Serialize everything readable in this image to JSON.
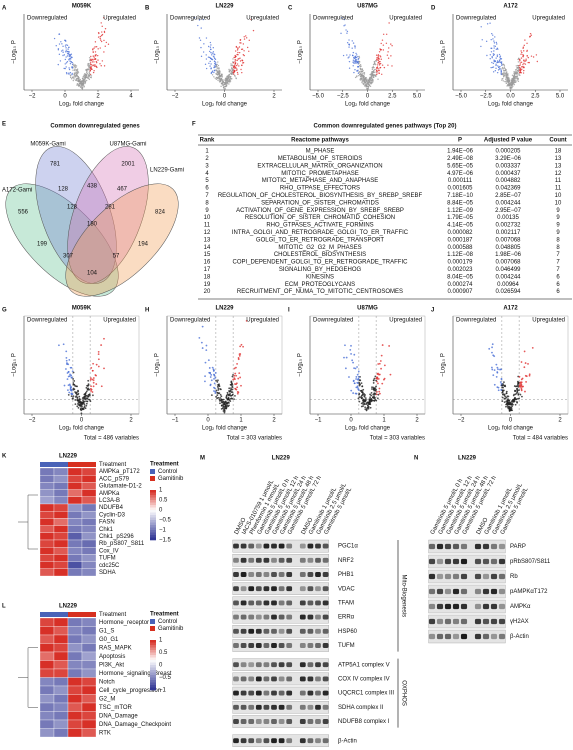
{
  "volcano_labels": {
    "down_label": "Downregulated",
    "up_label": "Upregulated",
    "xlabel": "Log₂ fold change",
    "ylabel": "−Log₁₀ P"
  },
  "volcanoes_top": [
    {
      "letter": "A",
      "title": "M059K",
      "xticks": [
        "−2",
        "0",
        "2",
        "4"
      ]
    },
    {
      "letter": "B",
      "title": "LN229",
      "xticks": [
        "−2",
        "0",
        "2"
      ]
    },
    {
      "letter": "C",
      "title": "U87MG",
      "xticks": [
        "−5.0",
        "−2.5",
        "0",
        "2.5",
        "5.0"
      ]
    },
    {
      "letter": "D",
      "title": "A172",
      "xticks": [
        "−5.0",
        "−2.5",
        "0.0",
        "2.5",
        "5.0"
      ]
    }
  ],
  "volcanoes_bottom": [
    {
      "letter": "G",
      "title": "M059K",
      "xticks": [
        "−2",
        "0",
        "2"
      ],
      "total": "Total = 486 variables"
    },
    {
      "letter": "H",
      "title": "LN229",
      "xticks": [
        "−1",
        "0",
        "1",
        "2"
      ],
      "total": "Total = 303 variables"
    },
    {
      "letter": "I",
      "title": "U87MG",
      "xticks": [
        "−1",
        "0",
        "1",
        "2"
      ],
      "total": "Total = 303 variables"
    },
    {
      "letter": "J",
      "title": "A172",
      "xticks": [
        "−2",
        "0",
        "2"
      ],
      "total": "Total = 484 variables"
    }
  ],
  "venn": {
    "letter": "E",
    "title": "Common downregulated genes",
    "sets": [
      "A172-Gami",
      "M059K-Gami",
      "U87MG-Gami",
      "LN229-Gami"
    ],
    "counts": [
      "556",
      "781",
      "2001",
      "824",
      "128",
      "438",
      "467",
      "128",
      "281",
      "180",
      "199",
      "194",
      "307",
      "57",
      "104"
    ]
  },
  "table": {
    "letter": "F",
    "title": "Common downregulated genes pathways (Top 20)",
    "header": [
      "Rank",
      "Reactome pathways",
      "P",
      "Adjusted P value",
      "Count"
    ],
    "rows": [
      {
        "cells": [
          "1",
          "M_PHASE",
          "1.94E−06",
          "0.000205",
          "18"
        ],
        "color": "#e0201b"
      },
      {
        "cells": [
          "2",
          "METABOLISM_OF_STEROIDS",
          "2.49E−08",
          "3.29E−06",
          "13"
        ]
      },
      {
        "cells": [
          "3",
          "EXTRACELLULAR_MATRIX_ORGANIZATION",
          "5.65E−05",
          "0.003337",
          "13"
        ]
      },
      {
        "cells": [
          "4",
          "MITOTIC_PROMETAPHASE",
          "4.97E−06",
          "0.000437",
          "12"
        ],
        "color": "#e0201b"
      },
      {
        "cells": [
          "5",
          "MITOTIC_METAPHASE_AND_ANAPHASE",
          "0.000111",
          "0.004882",
          "11"
        ],
        "color": "#e0201b"
      },
      {
        "cells": [
          "6",
          "RHO_GTPASE_EFFECTORS",
          "0.001605",
          "0.042369",
          "11"
        ]
      },
      {
        "cells": [
          "7",
          "REGULATION_OF_CHOLESTEROL_BIOSYNTHESIS_BY_SREBP_SREBF",
          "7.18E−10",
          "2.85E−07",
          "10"
        ]
      },
      {
        "cells": [
          "8",
          "SEPARATION_OF_SISTER_CHROMATIDS",
          "8.84E−05",
          "0.004244",
          "10"
        ],
        "color": "#e0201b"
      },
      {
        "cells": [
          "9",
          "ACTIVATION_OF_GENE_EXPRESSION_BY_SREBF_SREBP",
          "1.12E−09",
          "2.95E−07",
          "9"
        ]
      },
      {
        "cells": [
          "10",
          "RESOLUTION_OF_SISTER_CHROMATID_COHESION",
          "1.79E−05",
          "0.00135",
          "9"
        ],
        "color": "#e0201b"
      },
      {
        "cells": [
          "11",
          "RHO_GTPASES_ACTIVATE_FORMINS",
          "4.14E−05",
          "0.002732",
          "9"
        ]
      },
      {
        "cells": [
          "12",
          "INTRA_GOLGI_AND_RETROGRADE_GOLGI_TO_ER_TRAFFIC",
          "0.000082",
          "0.002117",
          "9"
        ]
      },
      {
        "cells": [
          "13",
          "GOLGI_TO_ER_RETROGRADE_TRANSPORT",
          "0.000187",
          "0.007068",
          "8"
        ]
      },
      {
        "cells": [
          "14",
          "MITOTIC_G2_G2_M_PHASES",
          "0.000588",
          "0.048805",
          "8"
        ],
        "color": "#e0201b"
      },
      {
        "cells": [
          "15",
          "CHOLESTEROL_BIOSYNTHESIS",
          "1.12E−08",
          "1.98E−06",
          "7"
        ]
      },
      {
        "cells": [
          "16",
          "COPI_DEPENDENT_GOLGI_TO_ER_RETROGRADE_TRAFFIC",
          "0.000179",
          "0.007068",
          "7"
        ]
      },
      {
        "cells": [
          "17",
          "SIGNALING_BY_HEDGEHOG",
          "0.002023",
          "0.046499",
          "7"
        ]
      },
      {
        "cells": [
          "18",
          "KINESINS",
          "8.04E−05",
          "0.004244",
          "6"
        ]
      },
      {
        "cells": [
          "19",
          "ECM_PROTEOGLYCANS",
          "0.000274",
          "0.00964",
          "6"
        ]
      },
      {
        "cells": [
          "20",
          "RECRUITMENT_OF_NUMA_TO_MITOTIC_CENTROSOMES",
          "0.000907",
          "0.026594",
          "6"
        ],
        "color": "#e0201b"
      }
    ]
  },
  "heatmaps": [
    {
      "letter": "K",
      "title": "LN229",
      "annotation_label": "Treatment",
      "legend_title": "Treatment",
      "groups": [
        {
          "name": "Control",
          "color": "#4a63b8"
        },
        {
          "name": "Gamitinib",
          "color": "#d7301f"
        }
      ],
      "scale": [
        "1",
        "0.5",
        "0",
        "−0.5",
        "−1",
        "−1.5"
      ],
      "rows": [
        {
          "label": "AMPKa_pT172",
          "values": [
            -1,
            -0.9,
            1,
            0.9
          ]
        },
        {
          "label": "ACC_pS79",
          "values": [
            -1,
            -0.8,
            0.9,
            1
          ]
        },
        {
          "label": "Glutamate-D1-2",
          "values": [
            -0.9,
            -1,
            1,
            0.8
          ]
        },
        {
          "label": "AMPKa",
          "values": [
            -0.8,
            -1,
            0.7,
            1
          ]
        },
        {
          "label": "LC3A-B",
          "values": [
            -0.7,
            -0.9,
            1,
            0.8
          ]
        },
        {
          "label": "NDUFB4",
          "values": [
            1,
            0.9,
            -0.8,
            -1
          ]
        },
        {
          "label": "Cyclin-D3",
          "values": [
            0.9,
            1,
            -1,
            -0.8
          ]
        },
        {
          "label": "FASN",
          "values": [
            1,
            0.7,
            -0.9,
            -1
          ]
        },
        {
          "label": "Chk1",
          "values": [
            0.8,
            1,
            -1,
            -0.9
          ]
        },
        {
          "label": "Chk1_pS296",
          "values": [
            1,
            0.9,
            -1.2,
            -0.8
          ]
        },
        {
          "label": "Rb_pS807_S811",
          "values": [
            0.9,
            1,
            -1,
            -1.1
          ]
        },
        {
          "label": "Cox_IV",
          "values": [
            1,
            0.8,
            -0.9,
            -1
          ]
        },
        {
          "label": "TUFM",
          "values": [
            0.9,
            1,
            -1,
            -0.8
          ]
        },
        {
          "label": "cdc25C",
          "values": [
            1,
            0.9,
            -1.3,
            -0.9
          ]
        },
        {
          "label": "SDHA",
          "values": [
            0.8,
            1,
            -1,
            -0.9
          ]
        }
      ]
    },
    {
      "letter": "L",
      "title": "LN229",
      "annotation_label": "Treatment",
      "legend_title": "Treatment",
      "groups": [
        {
          "name": "Control",
          "color": "#4a63b8"
        },
        {
          "name": "Gamitinib",
          "color": "#d7301f"
        }
      ],
      "scale": [
        "1",
        "0.5",
        "0",
        "−0.5",
        "−1"
      ],
      "rows": [
        {
          "label": "Hormone_receptor",
          "values": [
            0.9,
            1,
            -1,
            -0.9
          ]
        },
        {
          "label": "G1_S",
          "values": [
            1,
            0.8,
            -0.9,
            -1
          ]
        },
        {
          "label": "G0_G1",
          "values": [
            0.8,
            1,
            -1,
            -0.8
          ]
        },
        {
          "label": "RAS_MAPK",
          "values": [
            1,
            0.9,
            -0.8,
            -1
          ]
        },
        {
          "label": "Apoptosis",
          "values": [
            0.7,
            1,
            -1,
            -0.7
          ]
        },
        {
          "label": "PI3K_Akt",
          "values": [
            1,
            0.8,
            -0.9,
            -0.9
          ]
        },
        {
          "label": "Hormone_signaling_Breast",
          "values": [
            0.9,
            0.9,
            -1,
            -0.8
          ]
        },
        {
          "label": "Notch",
          "values": [
            -0.9,
            -1,
            1,
            0.9
          ]
        },
        {
          "label": "Cell_cycle_progression",
          "values": [
            -1,
            -0.8,
            0.9,
            1
          ]
        },
        {
          "label": "G2_M",
          "values": [
            -0.8,
            -1,
            1,
            0.8
          ]
        },
        {
          "label": "TSC_mTOR",
          "values": [
            -1,
            -0.9,
            0.8,
            1
          ]
        },
        {
          "label": "DNA_Damage",
          "values": [
            -0.9,
            -1,
            1,
            0.9
          ]
        },
        {
          "label": "DNA_Damage_Checkpoint",
          "values": [
            -1,
            -0.8,
            0.9,
            1
          ]
        },
        {
          "label": "RTK",
          "values": [
            -0.8,
            -1,
            1,
            0.8
          ]
        }
      ]
    }
  ],
  "blots": [
    {
      "letter": "M",
      "title": "LN229",
      "lanes": [
        "DMSO",
        "IACS-010759 1 μmol/L",
        "Phenformin 1 mmol/L",
        "Gamitrinib 5 μmol/L 0 h",
        "Gamitrinib 5 μmol/L 12 h",
        "Gamitrinib 5 μmol/L 24 h",
        "Gamitrinib 5 μmol/L 48 h",
        "Gamitrinib 5 μmol/L 72 h",
        "DMSO",
        "Gamitrinib 1 μmol/L",
        "Gamitrinib 2.5 μmol/L",
        "Gamitrinib 5 μmol/L"
      ],
      "proteins": [
        "PGC1α",
        "NRF2",
        "PHB1",
        "VDAC",
        "TFAM",
        "ERRα",
        "HSP60",
        "TUFM",
        "ATP5A1 complex V",
        "COX IV complex IV",
        "UQCRC1 complex III",
        "SDHA complex II",
        "NDUFB8 complex I",
        "β-Actin"
      ],
      "groups": [
        {
          "label": "Mito-Biogenesis",
          "from": 0,
          "to": 7
        },
        {
          "label": "OXPHOS",
          "from": 8,
          "to": 12
        }
      ]
    },
    {
      "letter": "N",
      "title": "LN229",
      "lanes": [
        "Gamitrinib 5 μmol/L 0 h",
        "Gamitrinib 5 μmol/L 12 h",
        "Gamitrinib 5 μmol/L 24 h",
        "Gamitrinib 5 μmol/L 48 h",
        "Gamitrinib 5 μmol/L 72 h",
        "DMSO",
        "Gamitrinib 1 μmol/L",
        "Gamitrinib 2.5 μmol/L",
        "Gamitrinib 5 μmol/L"
      ],
      "proteins": [
        "PARP",
        "pRbS807/S811",
        "Rb",
        "pAMPKαT172",
        "AMPKα",
        "γH2AX",
        "β-Actin"
      ]
    }
  ]
}
